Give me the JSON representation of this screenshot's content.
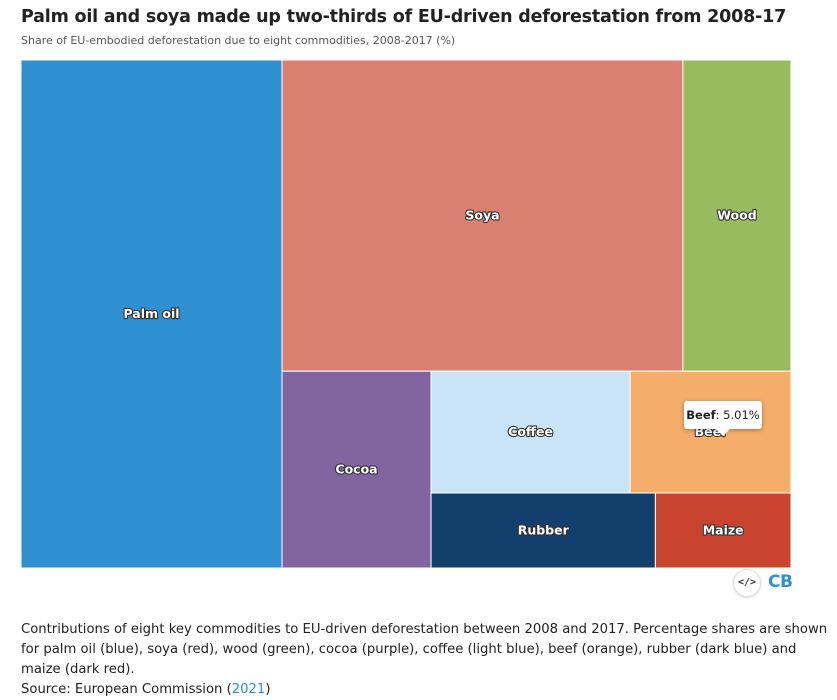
{
  "chart_data": {
    "type": "treemap",
    "title": "Palm oil and soya made up two-thirds of EU-driven deforestation from 2008-17",
    "subtitle": "Share of EU-embodied deforestation due to eight commodities, 2008-2017 (%)",
    "items": [
      {
        "name": "Palm oil",
        "value": 33.9,
        "color": "#2f8fd1"
      },
      {
        "name": "Soya",
        "value": 31.9,
        "color": "#d98070"
      },
      {
        "name": "Wood",
        "value": 8.6,
        "color": "#98bb5f"
      },
      {
        "name": "Cocoa",
        "value": 7.5,
        "color": "#8264a0"
      },
      {
        "name": "Coffee",
        "value": 6.2,
        "color": "#c9e4f7"
      },
      {
        "name": "Beef",
        "value": 5.01,
        "color": "#f4ae6a"
      },
      {
        "name": "Rubber",
        "value": 4.3,
        "color": "#123f6c"
      },
      {
        "name": "Maize",
        "value": 2.6,
        "color": "#c9442e"
      }
    ],
    "tooltip": {
      "name": "Beef",
      "value_text": "5.01%"
    }
  },
  "footer": {
    "embed_icon": "</>",
    "logo": "CB",
    "caption": "Contributions of eight key commodities to EU-driven deforestation between 2008 and 2017. Percentage shares are shown for palm oil (blue), soya (red), wood (green), cocoa (purple), coffee (light blue), beef (orange), rubber (dark blue) and maize (dark red).",
    "source_prefix": "Source: European Commission (",
    "source_link": "2021",
    "source_suffix": ")"
  }
}
